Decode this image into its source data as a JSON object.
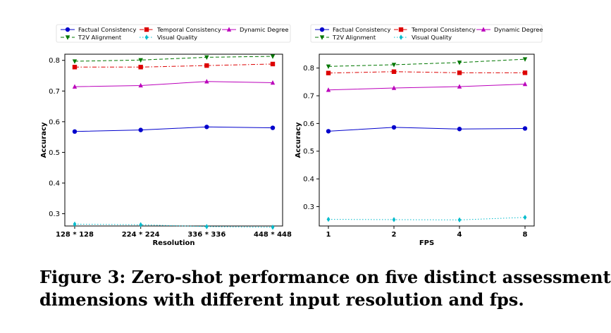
{
  "figure_caption": {
    "line1": "Figure 3: Zero-shot performance on five distinct assessment",
    "line2": "dimensions with different input resolution and fps."
  },
  "chart_data": [
    {
      "type": "line",
      "xlabel": "Resolution",
      "ylabel": "Accuracy",
      "categories": [
        "128 * 128",
        "224 * 224",
        "336 * 336",
        "448 * 448"
      ],
      "ylim": [
        0.26,
        0.82
      ],
      "yticks": [
        "0.3",
        "0.4",
        "0.5",
        "0.6",
        "0.7",
        "0.8"
      ],
      "grid": false,
      "legend_position": "top",
      "series": [
        {
          "name": "Factual Consistency",
          "color": "#0000cc",
          "marker": "circle",
          "dash": "solid",
          "values": [
            0.568,
            0.573,
            0.583,
            0.58
          ]
        },
        {
          "name": "Temporal Consistency",
          "color": "#dd0000",
          "marker": "square",
          "dash": "dashdot",
          "values": [
            0.778,
            0.778,
            0.783,
            0.788
          ]
        },
        {
          "name": "Dynamic Degree",
          "color": "#bb00bb",
          "marker": "triangle-up",
          "dash": "solid",
          "values": [
            0.714,
            0.718,
            0.731,
            0.727
          ]
        },
        {
          "name": "T2V Alignment",
          "color": "#007700",
          "marker": "triangle-down",
          "dash": "dashed",
          "values": [
            0.797,
            0.801,
            0.81,
            0.813
          ]
        },
        {
          "name": "Visual Quality",
          "color": "#00bbcc",
          "marker": "diamond",
          "dash": "dotted",
          "values": [
            0.266,
            0.264,
            0.258,
            0.256
          ]
        }
      ]
    },
    {
      "type": "line",
      "xlabel": "FPS",
      "ylabel": "Accuracy",
      "categories": [
        "1",
        "2",
        "4",
        "8"
      ],
      "ylim": [
        0.23,
        0.85
      ],
      "yticks": [
        "0.3",
        "0.4",
        "0.5",
        "0.6",
        "0.7",
        "0.8"
      ],
      "grid": false,
      "legend_position": "top",
      "series": [
        {
          "name": "Factual Consistency",
          "color": "#0000cc",
          "marker": "circle",
          "dash": "solid",
          "values": [
            0.572,
            0.586,
            0.58,
            0.582
          ]
        },
        {
          "name": "Temporal Consistency",
          "color": "#dd0000",
          "marker": "square",
          "dash": "dashdot",
          "values": [
            0.782,
            0.787,
            0.783,
            0.783
          ]
        },
        {
          "name": "Dynamic Degree",
          "color": "#bb00bb",
          "marker": "triangle-up",
          "dash": "solid",
          "values": [
            0.721,
            0.728,
            0.733,
            0.742
          ]
        },
        {
          "name": "T2V Alignment",
          "color": "#007700",
          "marker": "triangle-down",
          "dash": "dashed",
          "values": [
            0.806,
            0.812,
            0.82,
            0.832
          ]
        },
        {
          "name": "Visual Quality",
          "color": "#00bbcc",
          "marker": "diamond",
          "dash": "dotted",
          "values": [
            0.254,
            0.253,
            0.252,
            0.261
          ]
        }
      ]
    }
  ]
}
